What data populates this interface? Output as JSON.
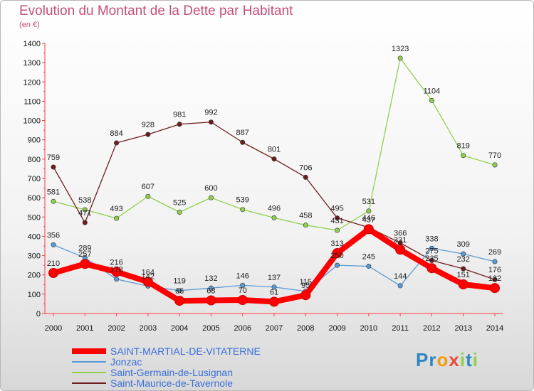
{
  "chart_data": {
    "type": "line",
    "title": "Evolution du Montant de la Dette par Habitant",
    "subtitle": "(en €)",
    "x": [
      "2000",
      "2001",
      "2002",
      "2003",
      "2004",
      "2005",
      "2006",
      "2007",
      "2008",
      "2009",
      "2010",
      "2011",
      "2012",
      "2013",
      "2014"
    ],
    "ylim": [
      0,
      1400
    ],
    "yticks": [
      0,
      100,
      200,
      300,
      400,
      500,
      600,
      700,
      800,
      900,
      1000,
      1100,
      1200,
      1300,
      1400
    ],
    "grid": false,
    "legend_position": "bottom-left",
    "series": [
      {
        "name": "SAINT-MARTIAL-DE-VITATERNE",
        "color": "#ff0000",
        "emphasis": true,
        "values": [
          210,
          257,
          216,
          164,
          66,
          68,
          70,
          61,
          95,
          313,
          437,
          331,
          235,
          151,
          132
        ]
      },
      {
        "name": "Jonzac",
        "color": "#5b9bd5",
        "values": [
          356,
          289,
          178,
          142,
          119,
          132,
          146,
          137,
          115,
          250,
          245,
          144,
          338,
          309,
          269
        ]
      },
      {
        "name": "Saint-Germain-de-Lusignan",
        "color": "#8fd14f",
        "values": [
          581,
          538,
          493,
          607,
          525,
          600,
          539,
          496,
          458,
          431,
          531,
          1323,
          1104,
          819,
          770
        ]
      },
      {
        "name": "Saint-Maurice-de-Tavernole",
        "color": "#6e1d1d",
        "values": [
          759,
          471,
          884,
          928,
          981,
          992,
          887,
          801,
          706,
          495,
          446,
          366,
          275,
          232,
          176
        ]
      }
    ]
  },
  "logo": {
    "letters": [
      "P",
      "r",
      "o",
      "x",
      "i",
      "t",
      "i"
    ],
    "colors": [
      "#2e86c1",
      "#2e86c1",
      "#f39c12",
      "#e74c3c",
      "#8fd14f",
      "#2e86c1",
      "#8fd14f"
    ]
  }
}
